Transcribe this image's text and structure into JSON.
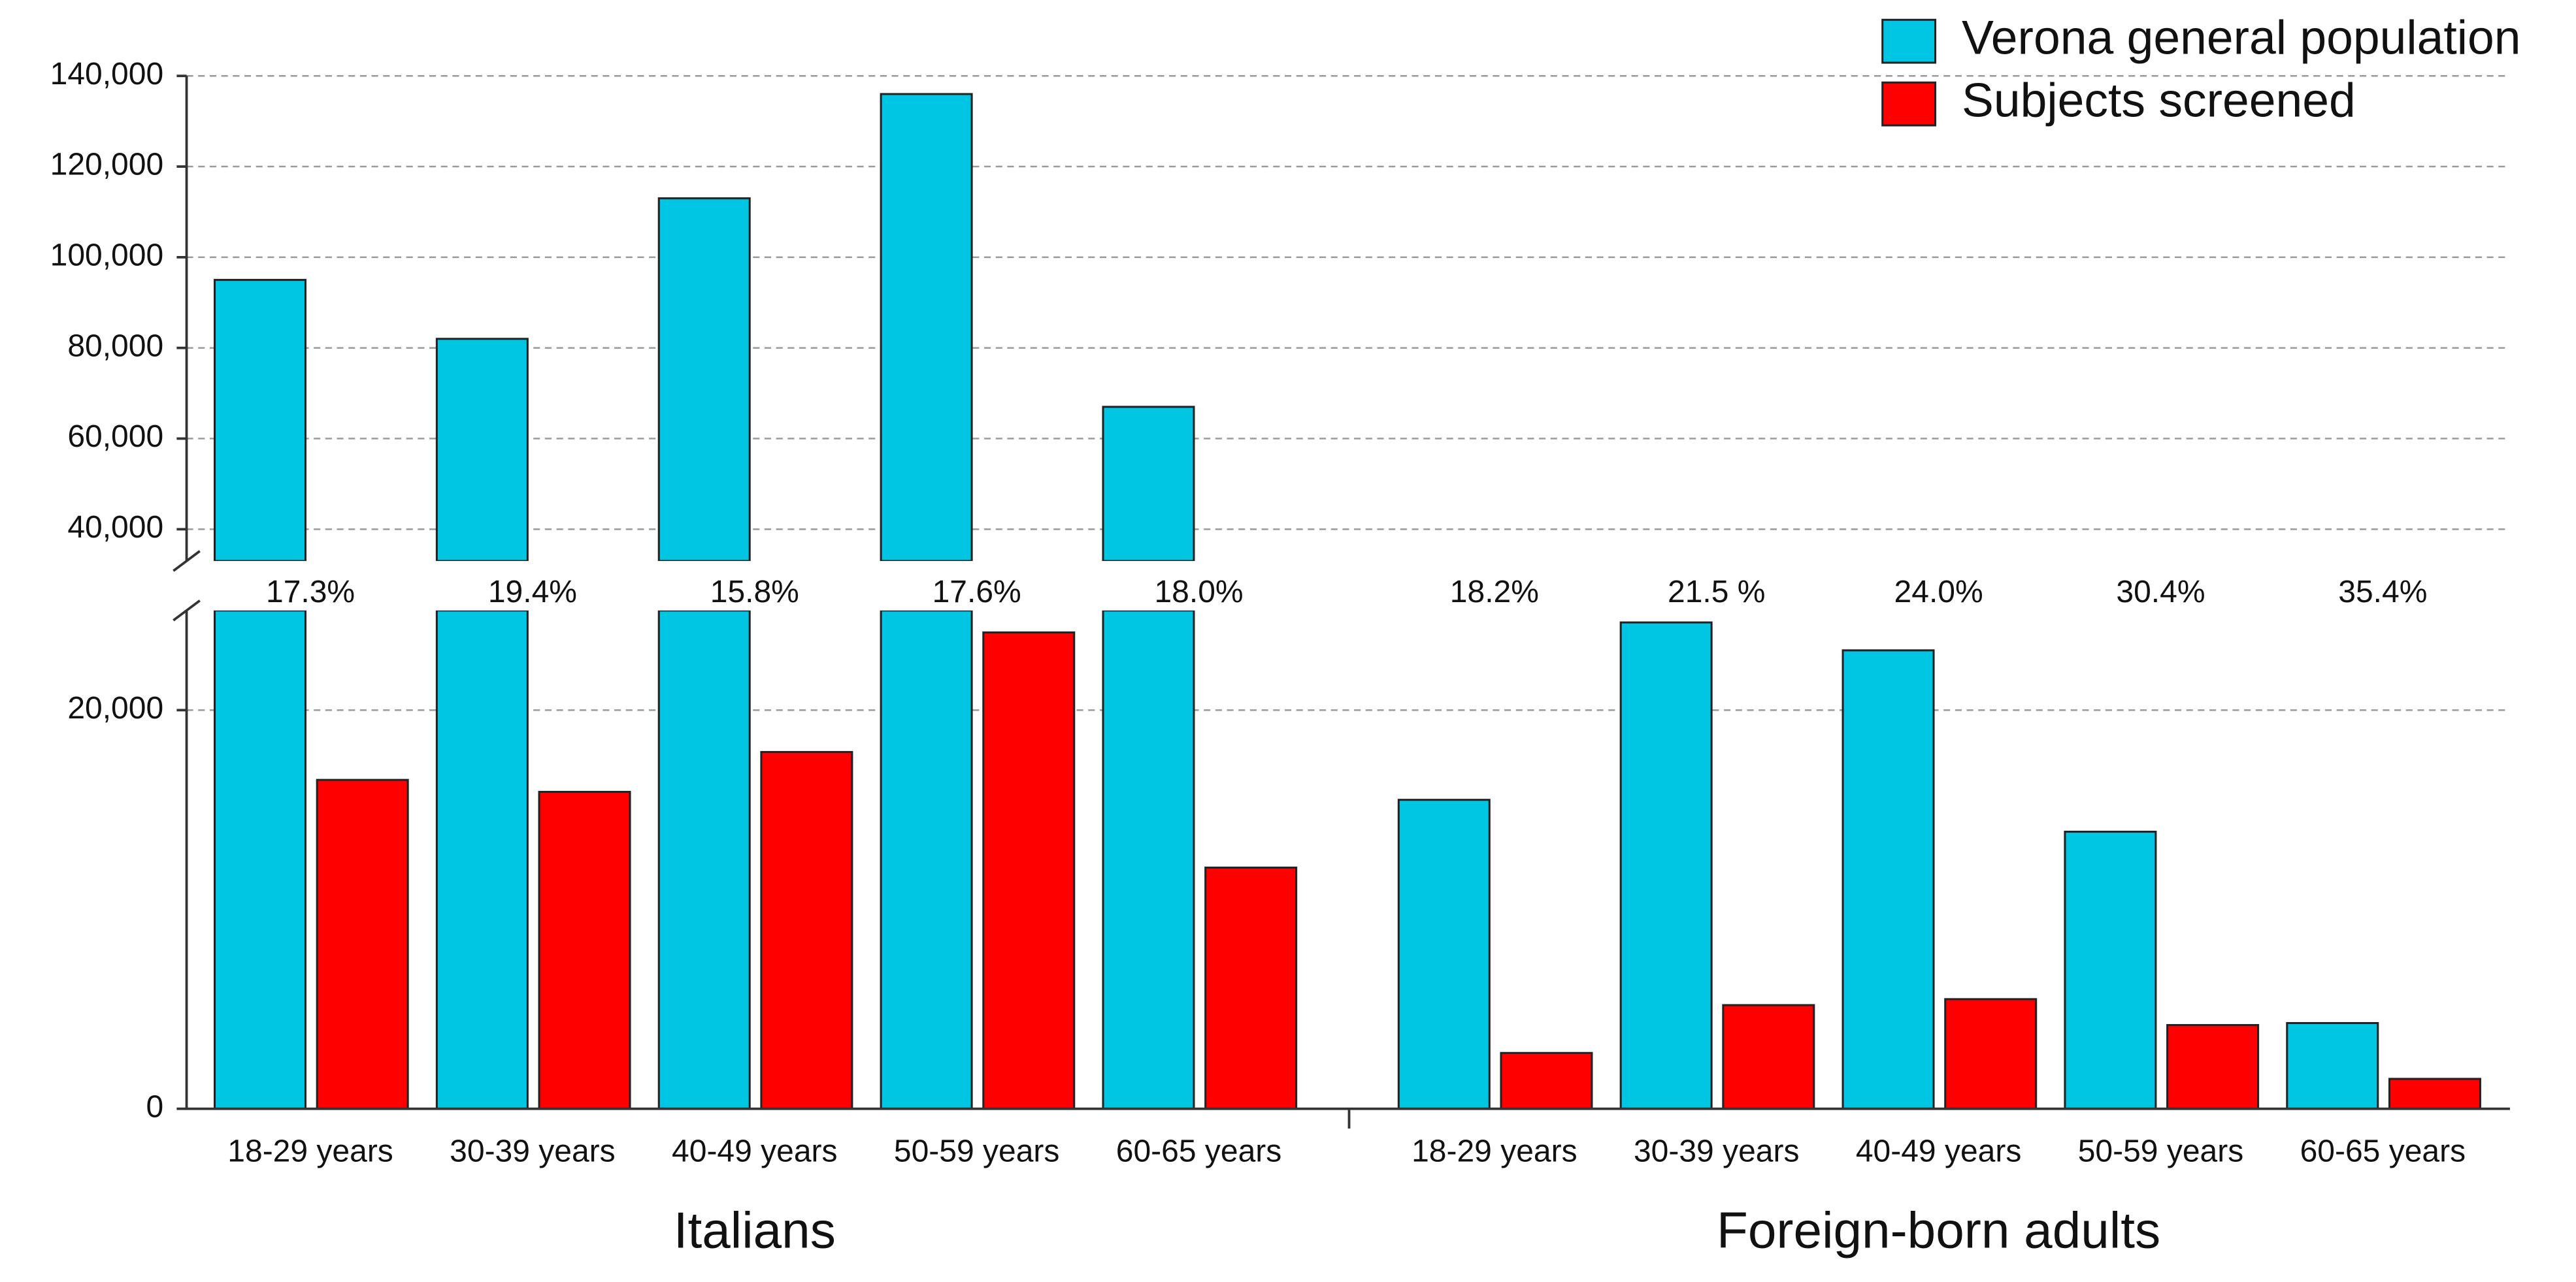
{
  "chart_data": {
    "type": "bar",
    "groups": [
      {
        "name": "Italians",
        "categories": [
          "18-29 years",
          "30-39 years",
          "40-49 years",
          "50-59 years",
          "60-65 years"
        ]
      },
      {
        "name": "Foreign-born adults",
        "categories": [
          "18-29 years",
          "30-39 years",
          "40-49 years",
          "50-59 years",
          "60-65 years"
        ]
      }
    ],
    "series": [
      {
        "name": "Verona general population",
        "color": "#00c5e3",
        "values": [
          95000,
          82000,
          113000,
          136000,
          67000,
          15500,
          24400,
          23000,
          13900,
          4300
        ]
      },
      {
        "name": "Subjects screened",
        "color": "#ff0000",
        "values": [
          16500,
          15900,
          17900,
          23900,
          12100,
          2800,
          5200,
          5500,
          4200,
          1500
        ]
      }
    ],
    "ratio_labels": [
      "17.3%",
      "19.4%",
      "15.8%",
      "17.6%",
      "18.0%",
      "18.2%",
      "21.5 %",
      "24.0%",
      "30.4%",
      "35.4%"
    ],
    "ylim": [
      0,
      140000
    ],
    "ybreak": [
      25000,
      33000
    ],
    "yticks": [
      0,
      {
        "value": 20000,
        "label": "20,000"
      },
      {
        "value": 40000,
        "label": "40,000"
      },
      {
        "value": 60000,
        "label": "60,000"
      },
      {
        "value": 80000,
        "label": "80,000"
      },
      {
        "value": 100000,
        "label": "100,000"
      },
      {
        "value": 120000,
        "label": "120,000"
      },
      {
        "value": 140000,
        "label": "140,000"
      }
    ],
    "grid": true,
    "legend": "top-right"
  }
}
